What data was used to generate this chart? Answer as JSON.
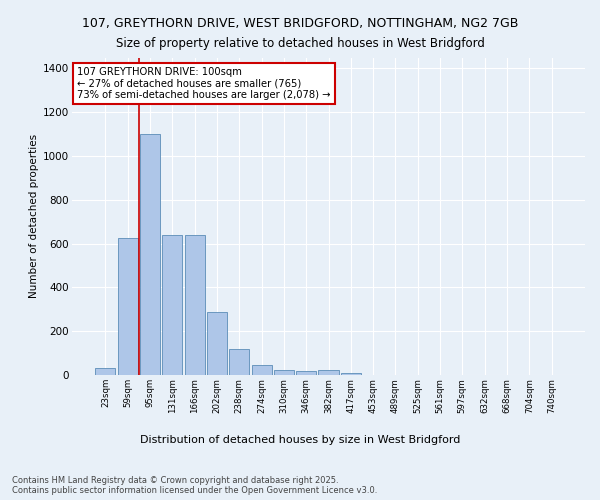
{
  "title1": "107, GREYTHORN DRIVE, WEST BRIDGFORD, NOTTINGHAM, NG2 7GB",
  "title2": "Size of property relative to detached houses in West Bridgford",
  "xlabel": "Distribution of detached houses by size in West Bridgford",
  "ylabel": "Number of detached properties",
  "categories": [
    "23sqm",
    "59sqm",
    "95sqm",
    "131sqm",
    "166sqm",
    "202sqm",
    "238sqm",
    "274sqm",
    "310sqm",
    "346sqm",
    "382sqm",
    "417sqm",
    "453sqm",
    "489sqm",
    "525sqm",
    "561sqm",
    "597sqm",
    "632sqm",
    "668sqm",
    "704sqm",
    "740sqm"
  ],
  "values": [
    30,
    625,
    1100,
    640,
    640,
    290,
    120,
    47,
    22,
    20,
    22,
    10,
    0,
    0,
    0,
    0,
    0,
    0,
    0,
    0,
    0
  ],
  "bar_color": "#aec6e8",
  "bar_edge_color": "#5b8db8",
  "vline_x": 1.5,
  "vline_color": "#cc0000",
  "annotation_text": "107 GREYTHORN DRIVE: 100sqm\n← 27% of detached houses are smaller (765)\n73% of semi-detached houses are larger (2,078) →",
  "annotation_box_color": "#ffffff",
  "annotation_box_edge": "#cc0000",
  "ylim": [
    0,
    1450
  ],
  "yticks": [
    0,
    200,
    400,
    600,
    800,
    1000,
    1200,
    1400
  ],
  "background_color": "#e8f0f8",
  "grid_color": "#ffffff",
  "footer": "Contains HM Land Registry data © Crown copyright and database right 2025.\nContains public sector information licensed under the Open Government Licence v3.0."
}
